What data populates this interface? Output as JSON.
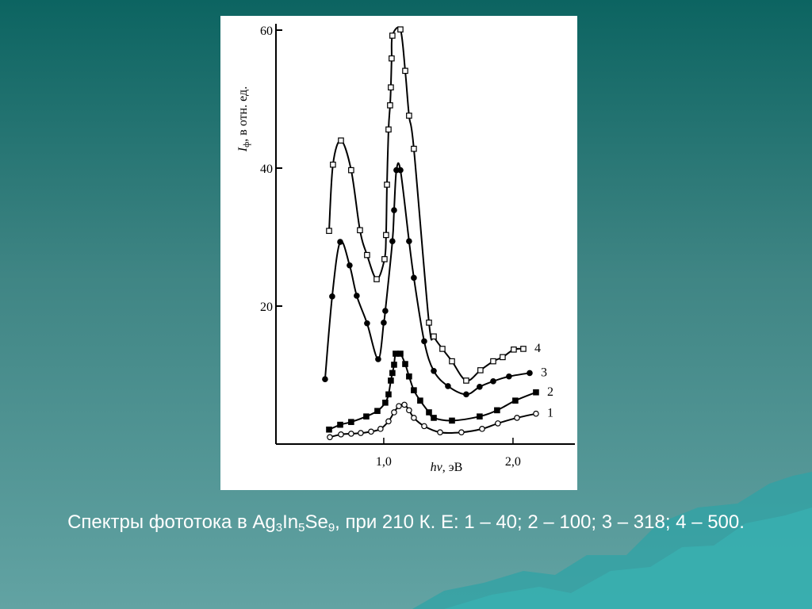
{
  "chart_data": {
    "type": "line",
    "y_label": {
      "symbol": "I",
      "subscript": "ф",
      "rest": ", в отн. ед."
    },
    "x_label": {
      "symbol": "hν",
      "rest": ", эВ"
    },
    "xlim": [
      0.166,
      2.479
    ],
    "ylim": [
      0,
      60
    ],
    "xticks": [
      {
        "value": 1,
        "label": "1,0"
      },
      {
        "value": 2,
        "label": "2,0"
      }
    ],
    "yticks": [
      20,
      40,
      60
    ],
    "series": [
      {
        "name": "1",
        "color": "#000000",
        "marker": "circle-open",
        "x": [
          0.583,
          0.669,
          0.748,
          0.822,
          0.902,
          0.975,
          1.037,
          1.08,
          1.117,
          1.16,
          1.196,
          1.233,
          1.313,
          1.436,
          1.601,
          1.761,
          1.883,
          2.031,
          2.178
        ],
        "values": [
          1.0,
          1.4,
          1.5,
          1.6,
          1.8,
          2.2,
          3.3,
          4.6,
          5.5,
          5.7,
          4.9,
          3.8,
          2.6,
          1.7,
          1.7,
          2.2,
          3.0,
          3.8,
          4.4
        ]
      },
      {
        "name": "2",
        "color": "#000000",
        "marker": "square-filled",
        "x": [
          0.577,
          0.663,
          0.748,
          0.865,
          0.951,
          1.012,
          1.037,
          1.055,
          1.067,
          1.08,
          1.092,
          1.129,
          1.166,
          1.196,
          1.233,
          1.282,
          1.35,
          1.387,
          1.528,
          1.742,
          1.877,
          2.018,
          2.178
        ],
        "values": [
          2.1,
          2.8,
          3.2,
          4.0,
          4.8,
          6.0,
          7.2,
          9.2,
          10.3,
          11.5,
          13.1,
          13.1,
          11.6,
          9.8,
          7.8,
          6.3,
          4.6,
          3.8,
          3.4,
          4.0,
          4.9,
          6.3,
          7.5
        ]
      },
      {
        "name": "3",
        "color": "#000000",
        "marker": "circle-filled",
        "x": [
          0.546,
          0.601,
          0.663,
          0.736,
          0.791,
          0.871,
          0.957,
          1.0,
          1.012,
          1.067,
          1.08,
          1.098,
          1.129,
          1.196,
          1.233,
          1.313,
          1.387,
          1.497,
          1.638,
          1.742,
          1.847,
          1.969,
          2.129
        ],
        "values": [
          9.4,
          21.4,
          29.3,
          25.9,
          21.5,
          17.5,
          12.3,
          17.6,
          19.3,
          29.4,
          33.9,
          39.7,
          39.7,
          29.4,
          24.1,
          14.9,
          10.6,
          8.4,
          7.2,
          8.3,
          9.1,
          9.8,
          10.3
        ]
      },
      {
        "name": "4",
        "color": "#000000",
        "marker": "square-open",
        "x": [
          0.577,
          0.607,
          0.669,
          0.748,
          0.816,
          0.871,
          0.945,
          1.006,
          1.018,
          1.025,
          1.037,
          1.049,
          1.055,
          1.061,
          1.067,
          1.129,
          1.166,
          1.196,
          1.233,
          1.35,
          1.387,
          1.454,
          1.528,
          1.638,
          1.748,
          1.847,
          1.92,
          2.006,
          2.08
        ],
        "values": [
          30.9,
          40.5,
          44.0,
          39.7,
          31.0,
          27.4,
          23.9,
          26.8,
          30.3,
          37.6,
          45.6,
          49.1,
          51.7,
          55.9,
          59.2,
          60.1,
          54.1,
          47.6,
          42.8,
          17.6,
          15.6,
          13.8,
          12.0,
          9.2,
          10.7,
          12.0,
          12.6,
          13.7,
          13.8
        ]
      }
    ]
  },
  "caption": {
    "parts": [
      "Спектры фототока в Ag",
      "3",
      "In",
      "5",
      "Se",
      "9",
      ", при 210 К. E: 1 – 40; 2 – 100; 3 – 318; 4 – 500."
    ]
  }
}
